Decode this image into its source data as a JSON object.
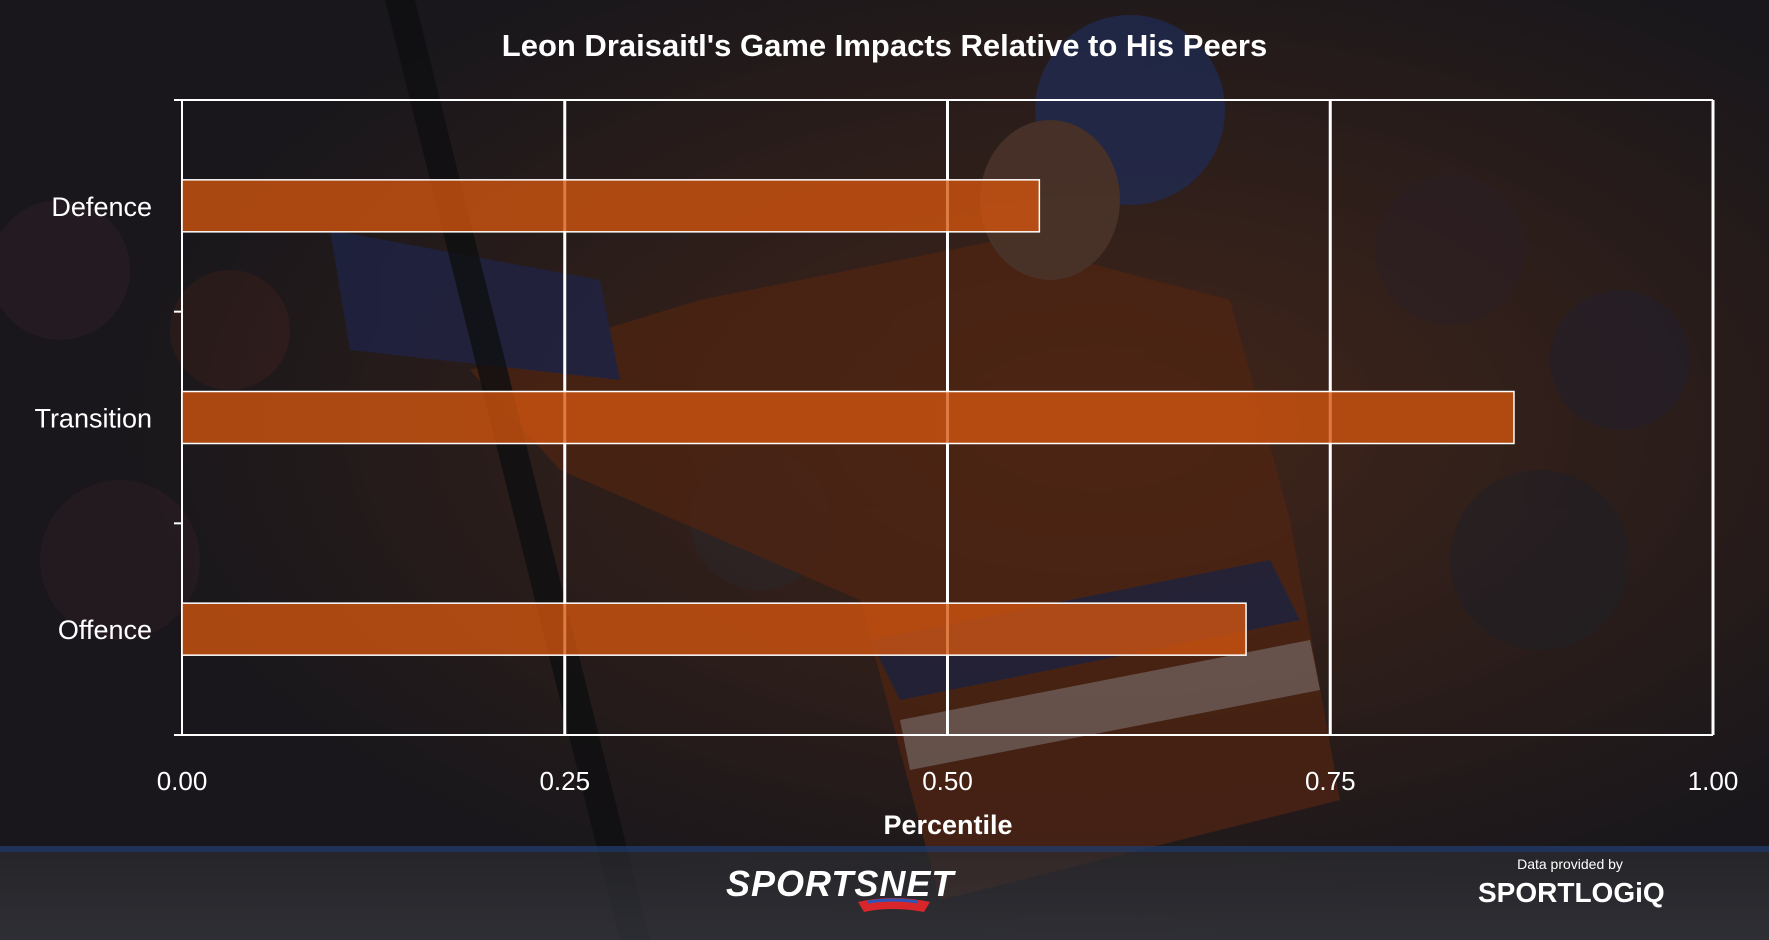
{
  "chart_data": {
    "type": "bar",
    "orientation": "horizontal",
    "title": "Leon Draisaitl's Game Impacts Relative to His Peers",
    "xlabel": "Percentile",
    "ylabel": "",
    "categories": [
      "Defence",
      "Transition",
      "Offence"
    ],
    "values": [
      0.56,
      0.87,
      0.695
    ],
    "xlim": [
      0,
      1
    ],
    "xticks": [
      "0.00",
      "0.25",
      "0.50",
      "0.75",
      "1.00"
    ],
    "grid": true,
    "legend": "none",
    "bar_color": "#d3560f"
  },
  "credits": {
    "caption": "Data provided by",
    "sportsnet_logo": "SPORTSNET",
    "sportlogiq_logo": "SPORTLOGiQ"
  },
  "colors": {
    "bar_fill": "#d3560f",
    "grid": "#ffffff",
    "text": "#ffffff",
    "background": "#1e1c1f",
    "arena_accent": "#2a4d8a"
  },
  "background_description_icon": "hockey-player-photo"
}
